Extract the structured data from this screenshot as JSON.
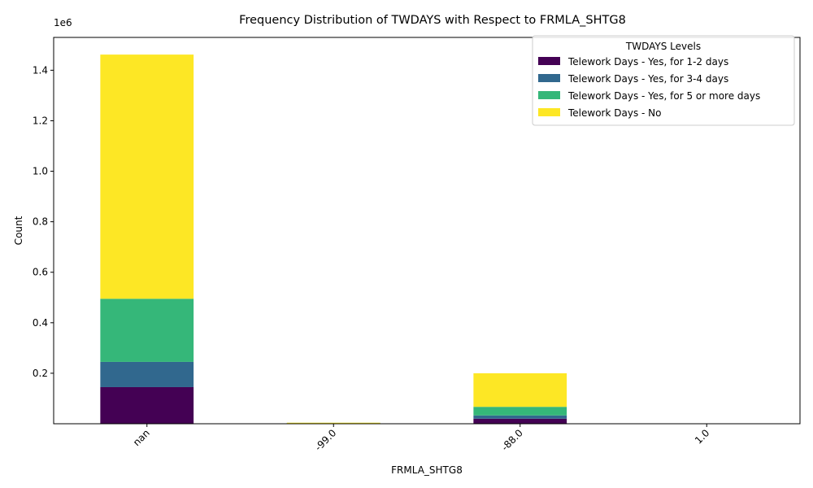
{
  "chart_data": {
    "type": "bar",
    "stacked": true,
    "title": "Frequency Distribution of TWDAYS with Respect to FRMLA_SHTG8",
    "xlabel": "FRMLA_SHTG8",
    "ylabel": "Count",
    "y_offset_label": "1e6",
    "categories": [
      "nan",
      "-99.0",
      "-88.0",
      "1.0"
    ],
    "ylim": [
      0,
      1.53
    ],
    "yticks": [
      "0.2",
      "0.4",
      "0.6",
      "0.8",
      "1.0",
      "1.2",
      "1.4"
    ],
    "legend": {
      "title": "TWDAYS Levels",
      "position": "top-right"
    },
    "series": [
      {
        "name": "Telework Days - Yes, for 1-2 days",
        "color": "#440154",
        "values": [
          0.145,
          0.001,
          0.02,
          0
        ]
      },
      {
        "name": "Telework Days - Yes, for 3-4 days",
        "color": "#31688e",
        "values": [
          0.1,
          0.002,
          0.013,
          0
        ]
      },
      {
        "name": "Telework Days - Yes, for 5 or more days",
        "color": "#35b779",
        "values": [
          0.25,
          0.0005,
          0.034,
          0
        ]
      },
      {
        "name": "Telework Days - No",
        "color": "#fde725",
        "values": [
          0.967,
          0.0005,
          0.133,
          0
        ]
      }
    ]
  }
}
